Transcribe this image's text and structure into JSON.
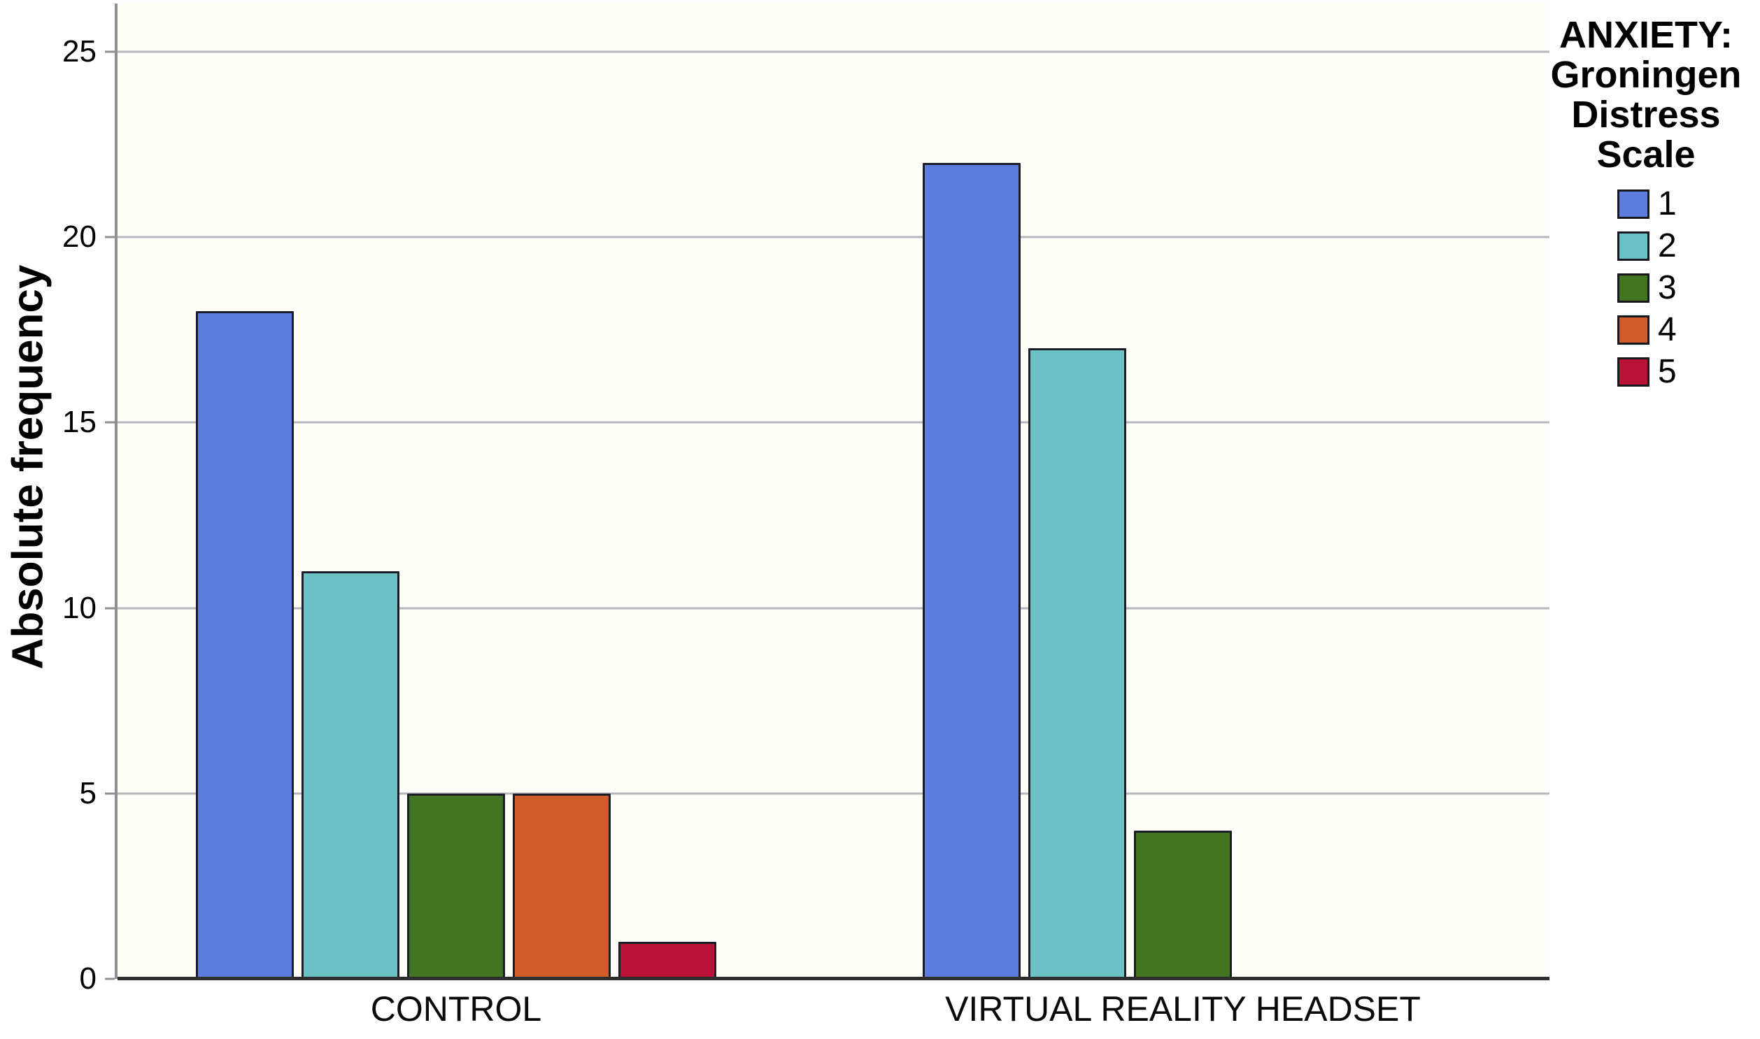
{
  "chart_data": {
    "type": "bar",
    "title": "",
    "xlabel": "",
    "ylabel": "Absolute frequency",
    "categories": [
      "CONTROL",
      "VIRTUAL REALITY HEADSET"
    ],
    "series": [
      {
        "name": "1",
        "color": "#5d7ce0",
        "values": [
          18,
          22
        ]
      },
      {
        "name": "2",
        "color": "#6bc1c4",
        "values": [
          11,
          17
        ]
      },
      {
        "name": "3",
        "color": "#437421",
        "values": [
          5,
          4
        ]
      },
      {
        "name": "4",
        "color": "#cf5d2a",
        "values": [
          5,
          0
        ]
      },
      {
        "name": "5",
        "color": "#b81336",
        "values": [
          1,
          0
        ]
      }
    ],
    "yticks": [
      0,
      5,
      10,
      15,
      20,
      25
    ],
    "ylim": [
      0,
      26.3
    ],
    "grid": true,
    "legend_position": "right",
    "legend_title": "ANXIETY: Groningen Distress Scale"
  },
  "colors": {
    "gridline": "#b6b6bc",
    "y_axis_spine": "#8f8f94",
    "x_axis_baseline": "#2e2e2e",
    "bar_border": "#1b1e26",
    "plot_background": "#fffef8"
  }
}
